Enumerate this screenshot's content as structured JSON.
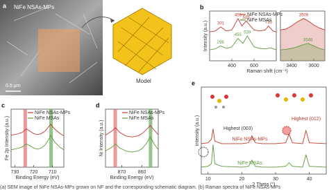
{
  "image_panel": {
    "label": "a",
    "text": "NiFe NSAs-MPs",
    "scale": "0.5 μm"
  },
  "model": {
    "label": "Model"
  },
  "caption": "(a) SEM image of NiFe NSAs-MPs grown on NF and the corresponding schematic diagram. (b) Raman spectra of NiFe NSAs-MPs",
  "chart_data": [
    {
      "type": "line",
      "label": "b",
      "xlabel": "Raman shift (cm⁻¹)",
      "ylabel": "Intensity (a.u.)",
      "xlim": [
        200,
        800
      ],
      "xticks": [
        400,
        600
      ],
      "ylim": [
        0,
        100
      ],
      "legend": "upper right",
      "series": [
        {
          "name": "NiFe NSAs-MPs",
          "color": "#c0392b",
          "x": [
            200,
            250,
            301,
            350,
            400,
            456,
            490,
            529,
            600,
            650,
            700,
            730,
            770,
            800
          ],
          "values": [
            58,
            60,
            68,
            60,
            62,
            85,
            70,
            80,
            62,
            60,
            62,
            70,
            60,
            58
          ],
          "peaks": [
            301,
            456,
            529,
            730
          ]
        },
        {
          "name": "NiFe MSAs",
          "color": "#5a9a3a",
          "x": [
            200,
            250,
            298,
            350,
            400,
            455,
            500,
            539,
            600,
            650,
            700,
            750,
            800
          ],
          "values": [
            22,
            24,
            30,
            25,
            28,
            45,
            35,
            50,
            28,
            25,
            24,
            26,
            22
          ],
          "peaks": [
            298,
            455,
            539
          ]
        }
      ]
    },
    {
      "type": "area",
      "xlim": [
        3300,
        3700
      ],
      "xticks": [
        3400,
        3600
      ],
      "ylim": [
        0,
        100
      ],
      "series": [
        {
          "color": "#c0392b",
          "x": [
            3300,
            3350,
            3400,
            3450,
            3509,
            3550,
            3600,
            3650,
            3700
          ],
          "values": [
            62,
            64,
            70,
            78,
            85,
            80,
            72,
            66,
            62
          ],
          "peaks": [
            3509
          ]
        },
        {
          "color": "#5a9a3a",
          "x": [
            3300,
            3350,
            3400,
            3450,
            3500,
            3548,
            3600,
            3650,
            3700
          ],
          "values": [
            22,
            23,
            25,
            28,
            32,
            35,
            30,
            25,
            22
          ],
          "peaks": [
            3548
          ]
        }
      ]
    },
    {
      "type": "line",
      "label": "c",
      "xlabel": "Binding Energy (eV)",
      "ylabel": "Fe 2p Intensity (a.u.)",
      "xlim": [
        732,
        704
      ],
      "xticks": [
        730,
        720,
        710
      ],
      "ylim": [
        0,
        100
      ],
      "legend": "upper right",
      "bands": [
        {
          "x": 724.5,
          "color": "#e07070"
        },
        {
          "x": 710.8,
          "color": "#6aaa5a"
        }
      ],
      "series": [
        {
          "name": "NiFe NSAs-MPs",
          "color": "#c0392b",
          "x": [
            732,
            729,
            726,
            724,
            722,
            720,
            718,
            716,
            714,
            712,
            711,
            709,
            706,
            704
          ],
          "values": [
            55,
            57,
            60,
            66,
            62,
            58,
            56,
            58,
            62,
            70,
            74,
            66,
            58,
            54
          ]
        },
        {
          "name": "NiFe MSAs",
          "color": "#5a9a3a",
          "x": [
            732,
            729,
            726,
            724,
            722,
            720,
            718,
            716,
            714,
            712,
            711,
            709,
            706,
            704
          ],
          "values": [
            30,
            32,
            35,
            40,
            37,
            33,
            31,
            33,
            38,
            48,
            55,
            44,
            34,
            30
          ]
        }
      ]
    },
    {
      "type": "line",
      "label": "d",
      "xlabel": "Binding Energy (eV)",
      "ylabel": "Ni Intensity (a.u.)",
      "xlim": [
        878,
        852
      ],
      "xticks": [
        870,
        860
      ],
      "ylim": [
        0,
        100
      ],
      "legend": "upper right",
      "bands": [
        {
          "x": 873.2,
          "color": "#e07070"
        },
        {
          "x": 855.8,
          "color": "#6aaa5a"
        }
      ],
      "series": [
        {
          "name": "NiFe NSAs-MPs",
          "color": "#c0392b",
          "x": [
            878,
            875,
            873,
            871,
            868,
            865,
            862,
            860,
            858,
            856,
            854,
            852
          ],
          "values": [
            55,
            62,
            68,
            60,
            54,
            52,
            54,
            58,
            64,
            72,
            64,
            56
          ]
        },
        {
          "name": "NiFe MSAs",
          "color": "#5a9a3a",
          "x": [
            878,
            875,
            873,
            871,
            868,
            865,
            862,
            860,
            858,
            856,
            854,
            852
          ],
          "values": [
            28,
            34,
            40,
            33,
            28,
            26,
            28,
            32,
            40,
            52,
            40,
            30
          ]
        }
      ]
    },
    {
      "type": "line",
      "label": "e",
      "xlabel": "2 Theta (°)",
      "ylabel": "Intensity (a.u.)",
      "xlim": [
        8,
        45
      ],
      "xticks": [
        10,
        20,
        30,
        40
      ],
      "ylim": [
        0,
        100
      ],
      "legend": "inline",
      "annotations": [
        "Highest (003)",
        "Highest (012)"
      ],
      "series": [
        {
          "name": "NiFe NSAs-MPs",
          "color": "#c0392b",
          "x": [
            8,
            10,
            11,
            11.5,
            12,
            14,
            20,
            22,
            23,
            24,
            26,
            30,
            33,
            34,
            35,
            38,
            39,
            40,
            45
          ],
          "values": [
            35,
            36,
            40,
            52,
            38,
            35,
            35,
            36,
            44,
            36,
            35,
            35,
            36,
            46,
            36,
            35,
            50,
            36,
            35
          ]
        },
        {
          "name": "NiFe MSAs",
          "color": "#5a9a3a",
          "x": [
            8,
            10,
            11,
            11.5,
            12,
            14,
            20,
            22,
            23,
            24,
            26,
            30,
            33,
            34,
            35,
            38,
            39,
            40,
            45
          ],
          "values": [
            8,
            9,
            12,
            34,
            12,
            9,
            8,
            9,
            16,
            9,
            8,
            8,
            9,
            13,
            9,
            8,
            22,
            9,
            8
          ]
        }
      ]
    }
  ]
}
